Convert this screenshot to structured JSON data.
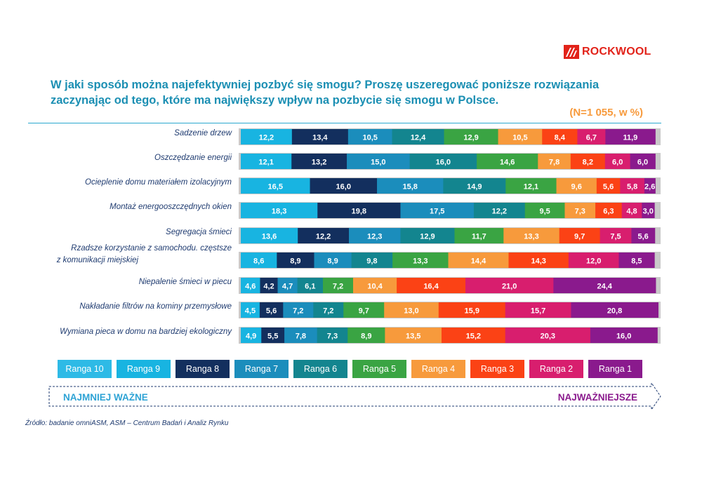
{
  "logo": {
    "text": "ROCKWOOL"
  },
  "title": "W jaki sposób można najefektywniej pozbyć się smogu? Proszę uszeregować  poniższe rozwiązania zaczynając od tego, które ma największy wpływ na pozbycie się smogu w Polsce.",
  "source": "Źródło: badanie omniASM, ASM – Centrum Badań i Analiz Rynku",
  "colors": {
    "brand_red": "#e2231a",
    "title_blue": "#1b8fb3",
    "subtitle_orange": "#f79a3c",
    "arrow_label": "#1f2f6d"
  },
  "chart_data": {
    "type": "bar",
    "orientation": "horizontal",
    "stacked": true,
    "title": "W jaki sposób można najefektywniej pozbyć się smogu? Proszę uszeregować  poniższe rozwiązania zaczynając od tego, które ma największy wpływ na pozbycie się smogu w Polsce.",
    "subtitle": "(N=1 055, w %)",
    "categories": [
      "Sadzenie drzew",
      "Oszczędzanie energii",
      "Ocieplenie domu materiałem izolacyjnym",
      "Montaż energooszczędnych okien",
      "Segregacja śmieci",
      "Rzadsze korzystanie z samochodu. częstsze z komunikacji miejskiej",
      "Niepalenie śmieci w piecu",
      "Nakładanie filtrów na kominy przemysłowe",
      "Wymiana pieca w domu na bardziej ekologiczny"
    ],
    "series": [
      {
        "name": "Ranga 10",
        "color": "#2ebae6",
        "values": [
          null,
          null,
          null,
          null,
          null,
          null,
          null,
          null,
          null
        ]
      },
      {
        "name": "Ranga 9",
        "color": "#18b4e1",
        "values": [
          12.2,
          12.1,
          16.5,
          18.3,
          13.6,
          8.6,
          4.6,
          4.5,
          4.9
        ]
      },
      {
        "name": "Ranga 8",
        "color": "#132f5e",
        "values": [
          13.4,
          13.2,
          16.0,
          19.8,
          12.2,
          8.9,
          4.2,
          5.6,
          5.5
        ]
      },
      {
        "name": "Ranga 7",
        "color": "#1b8dbc",
        "values": [
          10.5,
          15.0,
          15.8,
          17.5,
          12.3,
          8.9,
          4.7,
          7.2,
          7.8
        ]
      },
      {
        "name": "Ranga 6",
        "color": "#13858f",
        "values": [
          12.4,
          16.0,
          14.9,
          12.2,
          12.9,
          9.8,
          6.1,
          7.2,
          7.3
        ]
      },
      {
        "name": "Ranga 5",
        "color": "#3aa443",
        "values": [
          12.9,
          14.6,
          12.1,
          9.5,
          11.7,
          13.3,
          7.2,
          9.7,
          8.9
        ]
      },
      {
        "name": "Ranga 4",
        "color": "#f79a3c",
        "values": [
          10.5,
          7.8,
          9.6,
          7.3,
          13.3,
          14.4,
          10.4,
          13.0,
          13.5
        ]
      },
      {
        "name": "Ranga 3",
        "color": "#fb4215",
        "values": [
          8.4,
          8.2,
          5.6,
          6.3,
          9.7,
          14.3,
          16.4,
          15.9,
          15.2
        ]
      },
      {
        "name": "Ranga 2",
        "color": "#d81e6e",
        "values": [
          6.7,
          6.0,
          5.8,
          4.8,
          7.5,
          12.0,
          21.0,
          15.7,
          20.3
        ]
      },
      {
        "name": "Ranga 1",
        "color": "#8a1a8d",
        "values": [
          11.9,
          6.0,
          2.6,
          3.0,
          5.6,
          8.5,
          24.4,
          20.8,
          16.0
        ]
      }
    ],
    "legend_position": "bottom",
    "scale_labels": {
      "left": "NAJMNIEJ WAŻNE",
      "right": "NAJWAŻNIEJSZE"
    },
    "xlim": [
      0,
      100
    ],
    "grid": false
  }
}
